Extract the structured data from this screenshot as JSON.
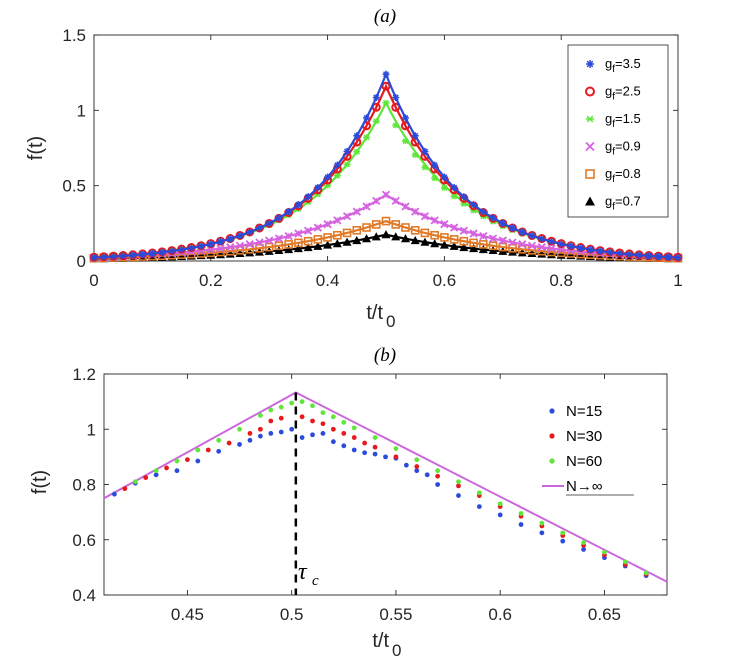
{
  "chart_data": [
    {
      "panel": "a",
      "type": "line",
      "title": "(a)",
      "xlabel_main": "t/t",
      "xlabel_sub": "0",
      "ylabel": "f(t)",
      "xlim": [
        0,
        1
      ],
      "ylim": [
        0,
        1.5
      ],
      "xticks": [
        0,
        0.2,
        0.4,
        0.6,
        0.8,
        1
      ],
      "xtick_labels": [
        "0",
        "0.2",
        "0.4",
        "0.6",
        "0.8",
        "1"
      ],
      "yticks": [
        0,
        0.5,
        1,
        1.5
      ],
      "ytick_labels": [
        "0",
        "0.5",
        "1",
        "1.5"
      ],
      "legend_position": "top-right",
      "series": [
        {
          "name": "3.5",
          "label_prefix": "g",
          "label_sub": "f",
          "label_suffix": "=3.5",
          "color": "#2b4bd9",
          "marker": "asterisk",
          "peak": 1.24,
          "sigma": 0.125
        },
        {
          "name": "2.5",
          "label_prefix": "g",
          "label_sub": "f",
          "label_suffix": "=2.5",
          "color": "#e8191d",
          "marker": "circle",
          "peak": 1.16,
          "sigma": 0.13
        },
        {
          "name": "1.5",
          "label_prefix": "g",
          "label_sub": "f",
          "label_suffix": "=1.5",
          "color": "#5ee63a",
          "marker": "star",
          "peak": 1.05,
          "sigma": 0.135
        },
        {
          "name": "0.9",
          "label_prefix": "g",
          "label_sub": "f",
          "label_suffix": "=0.9",
          "color": "#d563e0",
          "marker": "x",
          "peak": 0.44,
          "sigma": 0.17
        },
        {
          "name": "0.8",
          "label_prefix": "g",
          "label_sub": "f",
          "label_suffix": "=0.8",
          "color": "#e07a26",
          "marker": "square",
          "peak": 0.265,
          "sigma": 0.19
        },
        {
          "name": "0.7",
          "label_prefix": "g",
          "label_sub": "f",
          "label_suffix": "=0.7",
          "color": "#000000",
          "marker": "triangle",
          "peak": 0.175,
          "sigma": 0.2
        }
      ]
    },
    {
      "panel": "b",
      "type": "scatter",
      "title": "(b)",
      "xlabel_main": "t/t",
      "xlabel_sub": "0",
      "ylabel": "f(t)",
      "xlim": [
        0.41,
        0.68
      ],
      "ylim": [
        0.4,
        1.2
      ],
      "xticks": [
        0.45,
        0.5,
        0.55,
        0.6,
        0.65
      ],
      "xtick_labels": [
        "0.45",
        "0.5",
        "0.55",
        "0.6",
        "0.65"
      ],
      "yticks": [
        0.4,
        0.6,
        0.8,
        1,
        1.2
      ],
      "ytick_labels": [
        "0.4",
        "0.6",
        "0.8",
        "1",
        "1.2"
      ],
      "critical_time": 0.502,
      "critical_label": "τ",
      "critical_label_sub": "c",
      "limit_line": {
        "name": "N→∞",
        "color": "#cc66dd",
        "x": [
          0.41,
          0.502,
          0.68
        ],
        "y": [
          0.75,
          1.133,
          0.448
        ]
      },
      "series": [
        {
          "name": "N=15",
          "color": "#2b4bd9",
          "x": [
            0.415,
            0.425,
            0.435,
            0.445,
            0.455,
            0.465,
            0.475,
            0.48,
            0.485,
            0.49,
            0.495,
            0.5,
            0.505,
            0.51,
            0.515,
            0.52,
            0.525,
            0.53,
            0.535,
            0.54,
            0.545,
            0.55,
            0.555,
            0.56,
            0.565,
            0.57,
            0.58,
            0.59,
            0.6,
            0.61,
            0.62,
            0.63,
            0.64,
            0.65,
            0.66,
            0.67
          ],
          "y": [
            0.765,
            0.805,
            0.835,
            0.85,
            0.885,
            0.92,
            0.945,
            0.96,
            0.975,
            0.985,
            0.99,
            1.0,
            0.97,
            0.98,
            0.985,
            0.955,
            0.94,
            0.925,
            0.915,
            0.91,
            0.9,
            0.895,
            0.87,
            0.85,
            0.835,
            0.8,
            0.76,
            0.72,
            0.69,
            0.655,
            0.625,
            0.595,
            0.565,
            0.535,
            0.505,
            0.47
          ]
        },
        {
          "name": "N=30",
          "color": "#e8191d",
          "x": [
            0.42,
            0.43,
            0.44,
            0.45,
            0.46,
            0.47,
            0.48,
            0.485,
            0.49,
            0.495,
            0.505,
            0.51,
            0.515,
            0.52,
            0.525,
            0.53,
            0.535,
            0.54,
            0.55,
            0.56,
            0.57,
            0.58,
            0.59,
            0.6,
            0.61,
            0.62,
            0.63,
            0.64,
            0.65,
            0.66,
            0.67
          ],
          "y": [
            0.785,
            0.825,
            0.86,
            0.89,
            0.925,
            0.95,
            0.985,
            1.0,
            1.03,
            1.04,
            1.045,
            1.03,
            1.02,
            1.0,
            0.985,
            0.97,
            0.95,
            0.935,
            0.9,
            0.865,
            0.83,
            0.795,
            0.76,
            0.72,
            0.685,
            0.65,
            0.615,
            0.58,
            0.545,
            0.51,
            0.475
          ]
        },
        {
          "name": "N=60",
          "color": "#5ee63a",
          "x": [
            0.425,
            0.435,
            0.445,
            0.455,
            0.465,
            0.475,
            0.485,
            0.49,
            0.495,
            0.5,
            0.505,
            0.51,
            0.515,
            0.52,
            0.525,
            0.53,
            0.54,
            0.55,
            0.56,
            0.57,
            0.58,
            0.59,
            0.6,
            0.61,
            0.62,
            0.63,
            0.64,
            0.65,
            0.66,
            0.67
          ],
          "y": [
            0.81,
            0.85,
            0.885,
            0.925,
            0.96,
            1.0,
            1.05,
            1.07,
            1.08,
            1.095,
            1.1,
            1.085,
            1.06,
            1.045,
            1.025,
            1.005,
            0.97,
            0.93,
            0.89,
            0.85,
            0.81,
            0.77,
            0.73,
            0.695,
            0.66,
            0.625,
            0.59,
            0.555,
            0.52,
            0.48
          ]
        }
      ]
    }
  ]
}
